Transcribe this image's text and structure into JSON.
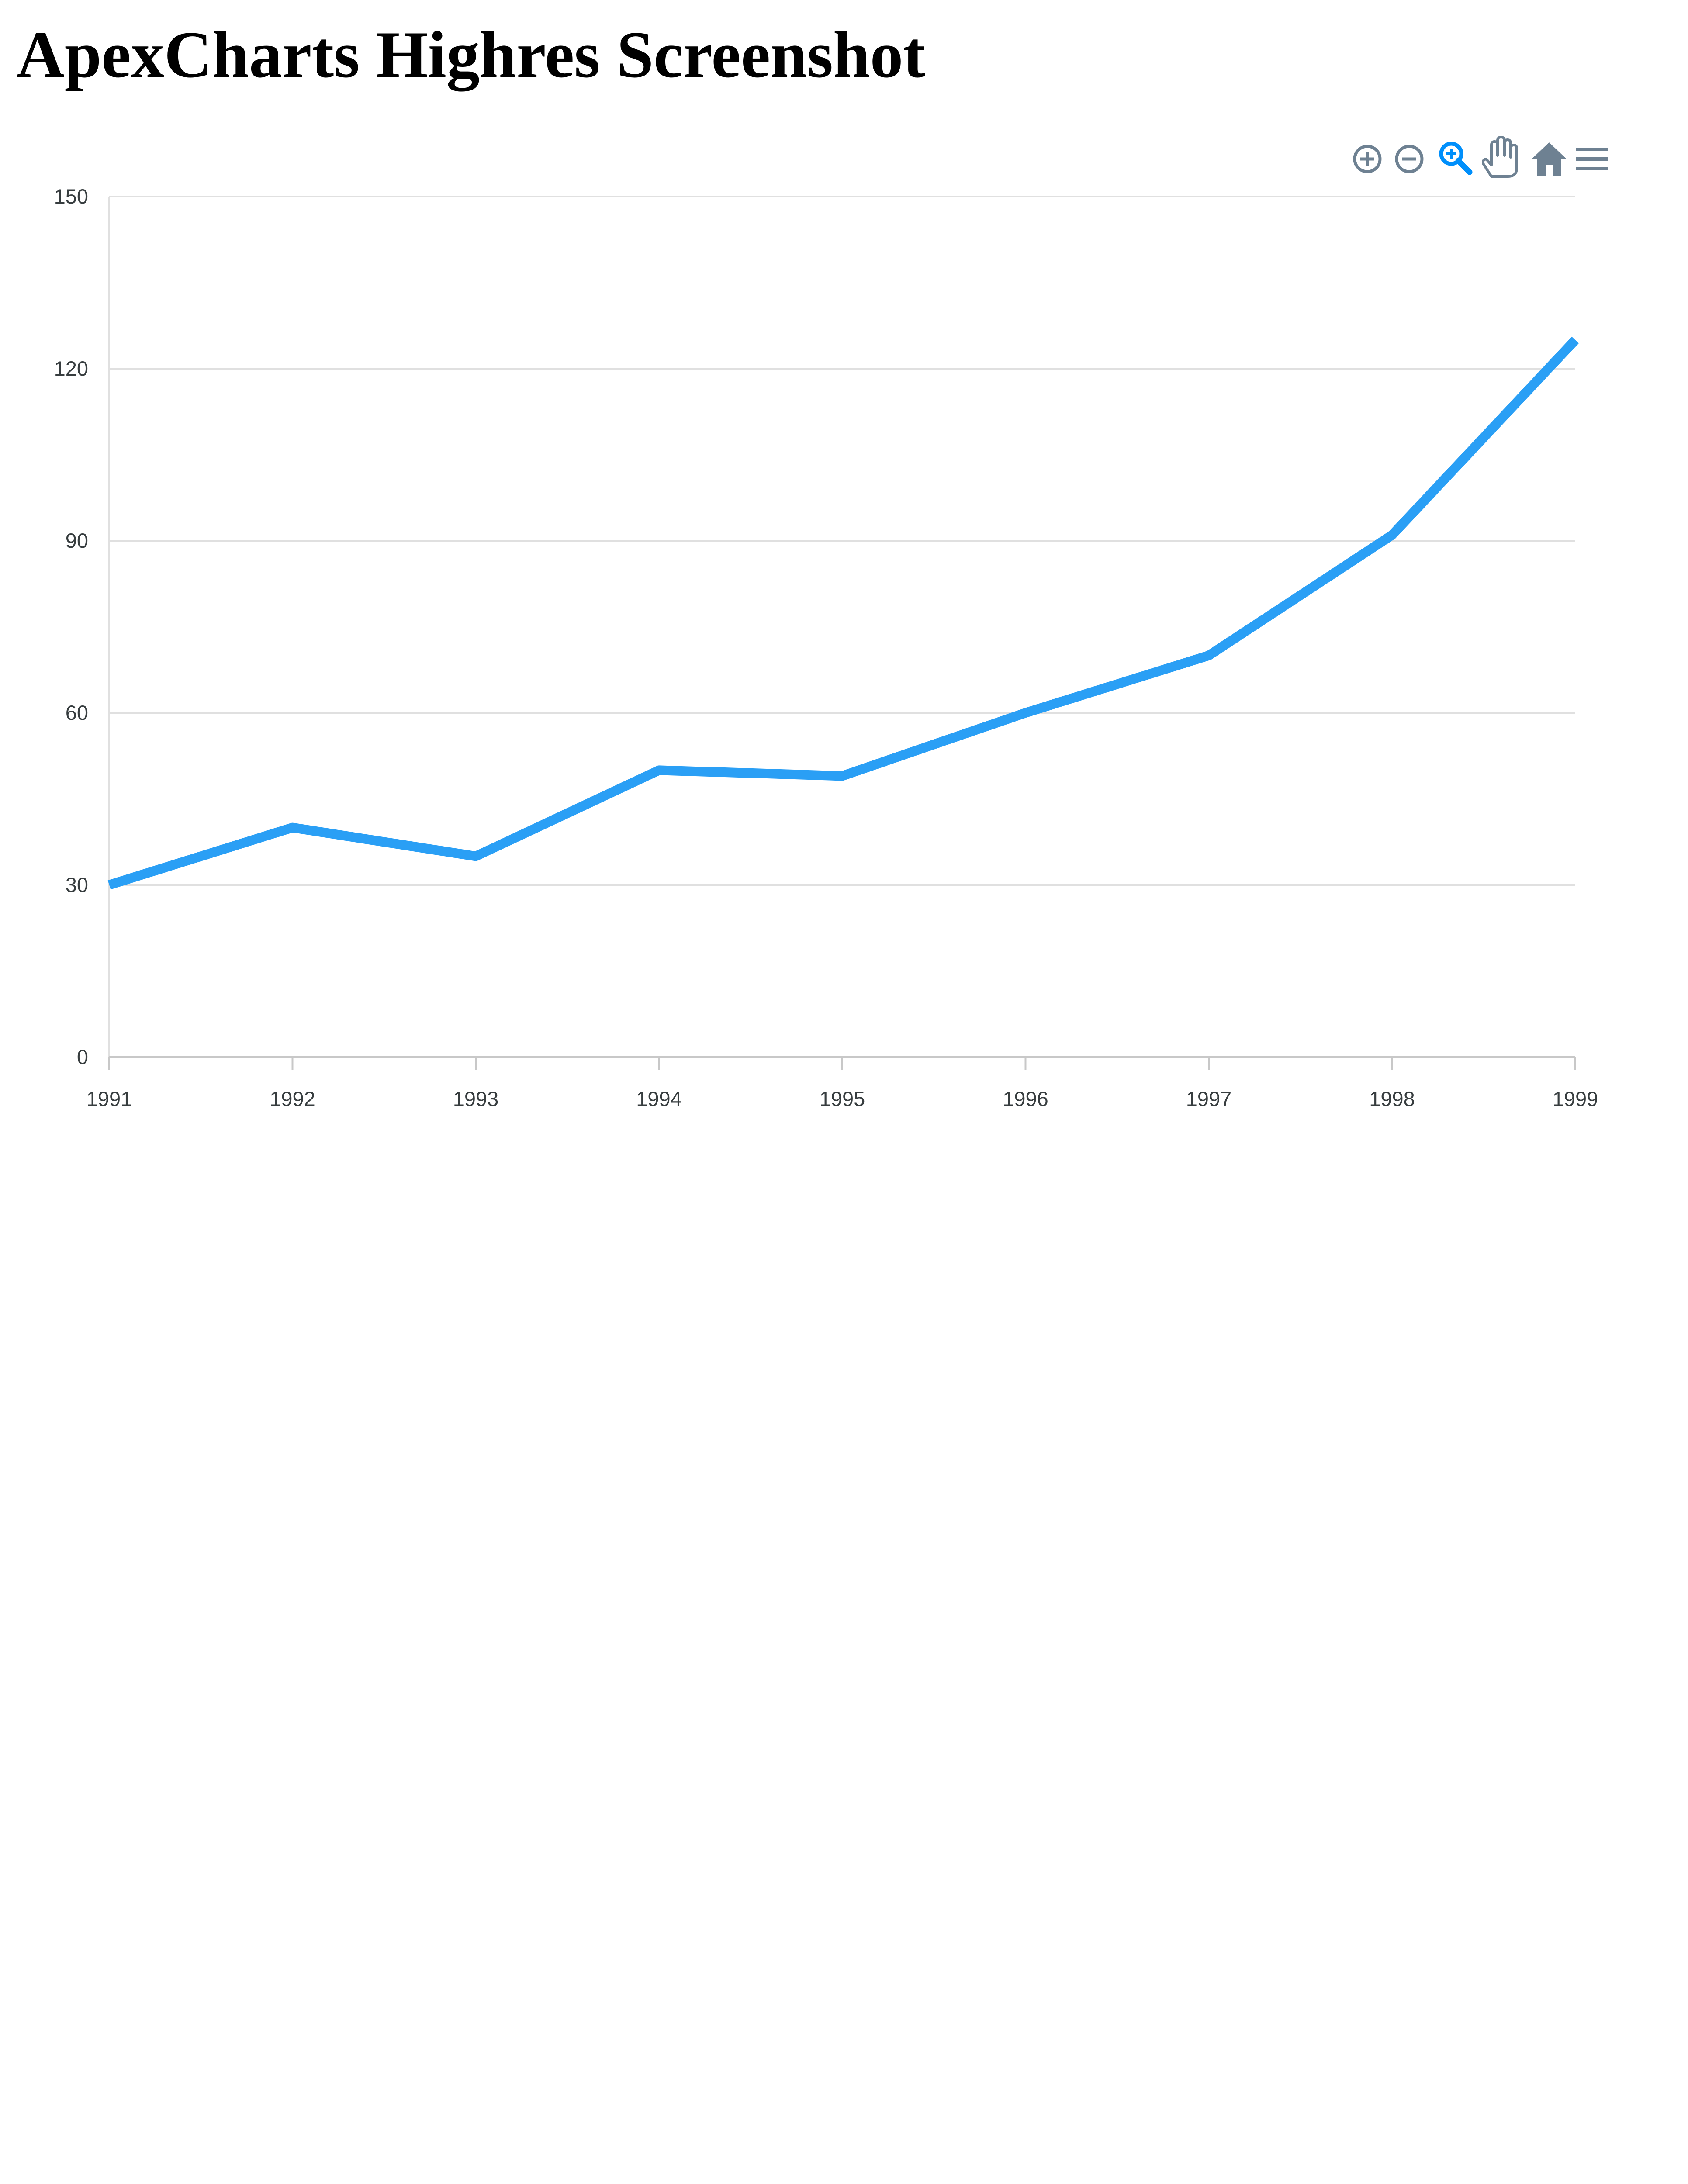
{
  "page": {
    "title": "ApexCharts Highres Screenshot"
  },
  "toolbar": {
    "icons": [
      "zoom-in-icon",
      "zoom-out-icon",
      "selection-zoom-icon",
      "pan-icon",
      "reset-zoom-icon",
      "menu-icon"
    ],
    "icon_color": "#6e8192",
    "active_color": "#008ffb"
  },
  "chart_data": {
    "type": "line",
    "categories": [
      "1991",
      "1992",
      "1993",
      "1994",
      "1995",
      "1996",
      "1997",
      "1998",
      "1999"
    ],
    "series": [
      {
        "values": [
          30,
          40,
          35,
          50,
          49,
          60,
          70,
          91,
          125
        ]
      }
    ],
    "ylim": [
      0,
      150
    ],
    "yticks": [
      "0",
      "30",
      "60",
      "90",
      "120",
      "150"
    ],
    "grid": true,
    "legend": "none",
    "line_color": "#2a9ff5",
    "grid_color": "#e0e0e0",
    "axis_color": "#c8c8c8"
  }
}
